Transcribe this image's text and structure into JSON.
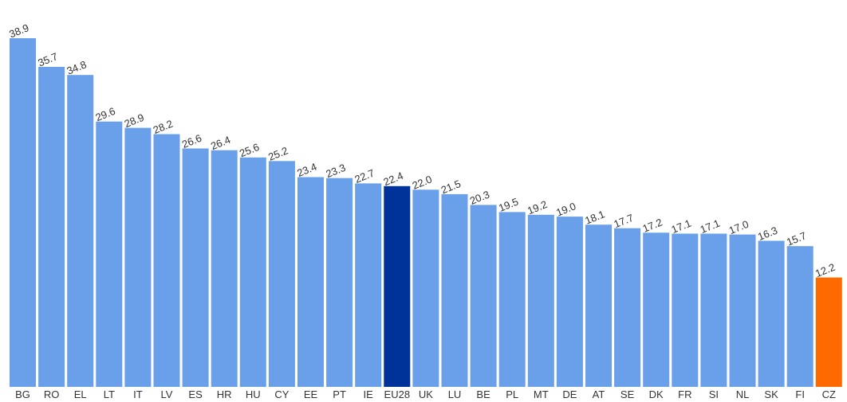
{
  "chart_data": {
    "type": "bar",
    "categories": [
      "BG",
      "RO",
      "EL",
      "LT",
      "IT",
      "LV",
      "ES",
      "HR",
      "HU",
      "CY",
      "EE",
      "PT",
      "IE",
      "EU28",
      "UK",
      "LU",
      "BE",
      "PL",
      "MT",
      "DE",
      "AT",
      "SE",
      "DK",
      "FR",
      "SI",
      "NL",
      "SK",
      "FI",
      "CZ"
    ],
    "values": [
      38.9,
      35.7,
      34.8,
      29.6,
      28.9,
      28.2,
      26.6,
      26.4,
      25.6,
      25.2,
      23.4,
      23.3,
      22.7,
      22.4,
      22.0,
      21.5,
      20.3,
      19.5,
      19.2,
      19.0,
      18.1,
      17.7,
      17.2,
      17.1,
      17.1,
      17.0,
      16.3,
      15.7,
      12.2
    ],
    "value_labels": [
      "38.9",
      "35.7",
      "34.8",
      "29.6",
      "28.9",
      "28.2",
      "26.6",
      "26.4",
      "25.6",
      "25.2",
      "23.4",
      "23.3",
      "22.7",
      "22.4",
      "22.0",
      "21.5",
      "20.3",
      "19.5",
      "19.2",
      "19.0",
      "18.1",
      "17.7",
      "17.2",
      "17.1",
      "17.1",
      "17.0",
      "16.3",
      "15.7",
      "12.2"
    ],
    "ylim": [
      0,
      38.9
    ],
    "grid": false,
    "colors": {
      "default": "#6aa0ea",
      "highlight": {
        "EU28": "#003399",
        "CZ": "#ff6a00"
      }
    }
  }
}
